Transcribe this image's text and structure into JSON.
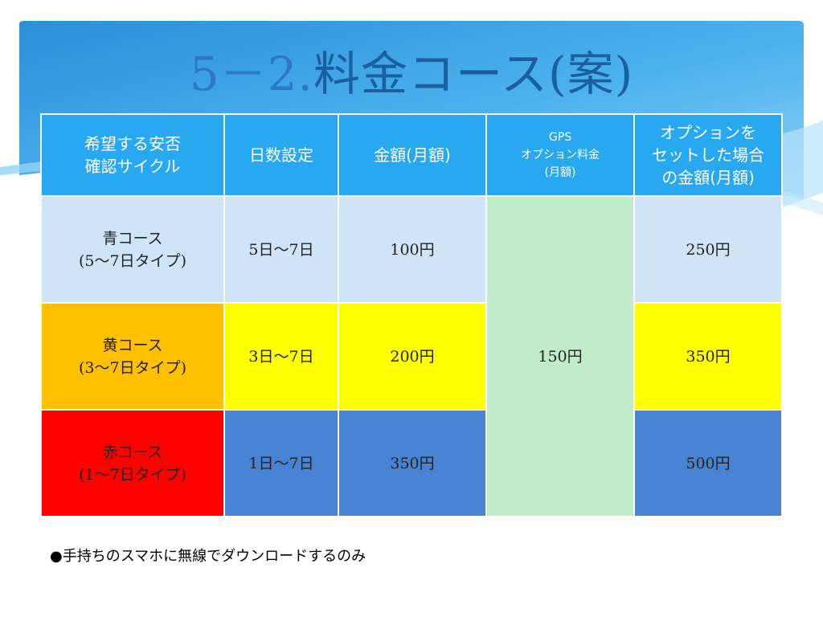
{
  "slide": {
    "title_num": "5－2.",
    "title_text": "料金コース(案)"
  },
  "colors": {
    "header_bg": "#29a8f2",
    "blue_row_light": "#cfe4f7",
    "yellow": "#ffff00",
    "orange": "#ffc000",
    "red": "#ff0000",
    "blue_row_dark": "#4883d3",
    "gps_cell": "#c0ecca",
    "title": "#1a5fa0"
  },
  "table": {
    "headers": [
      {
        "line1": "希望する安否",
        "line2": "確認サイクル"
      },
      {
        "line1": "日数設定"
      },
      {
        "line1": "金額(月額)"
      },
      {
        "line1": "GPS",
        "line2": "オプション料金",
        "line3": "(月額)"
      },
      {
        "line1": "オプションを",
        "line2": "セットした場合",
        "line3": "の金額(月額)"
      }
    ],
    "rows": [
      {
        "course": "青コース",
        "course_sub": "(5～7日タイプ)",
        "days": "5日～7日",
        "price": "100円",
        "total": "250円"
      },
      {
        "course": "黄コース",
        "course_sub": "(3～7日タイプ)",
        "days": "3日～7日",
        "price": "200円",
        "total": "350円"
      },
      {
        "course": "赤コース",
        "course_sub": "(1～7日タイプ)",
        "days": "1日～7日",
        "price": "350円",
        "total": "500円"
      }
    ],
    "gps_price": "150円"
  },
  "note": "●手持ちのスマホに無線でダウンロードするのみ"
}
